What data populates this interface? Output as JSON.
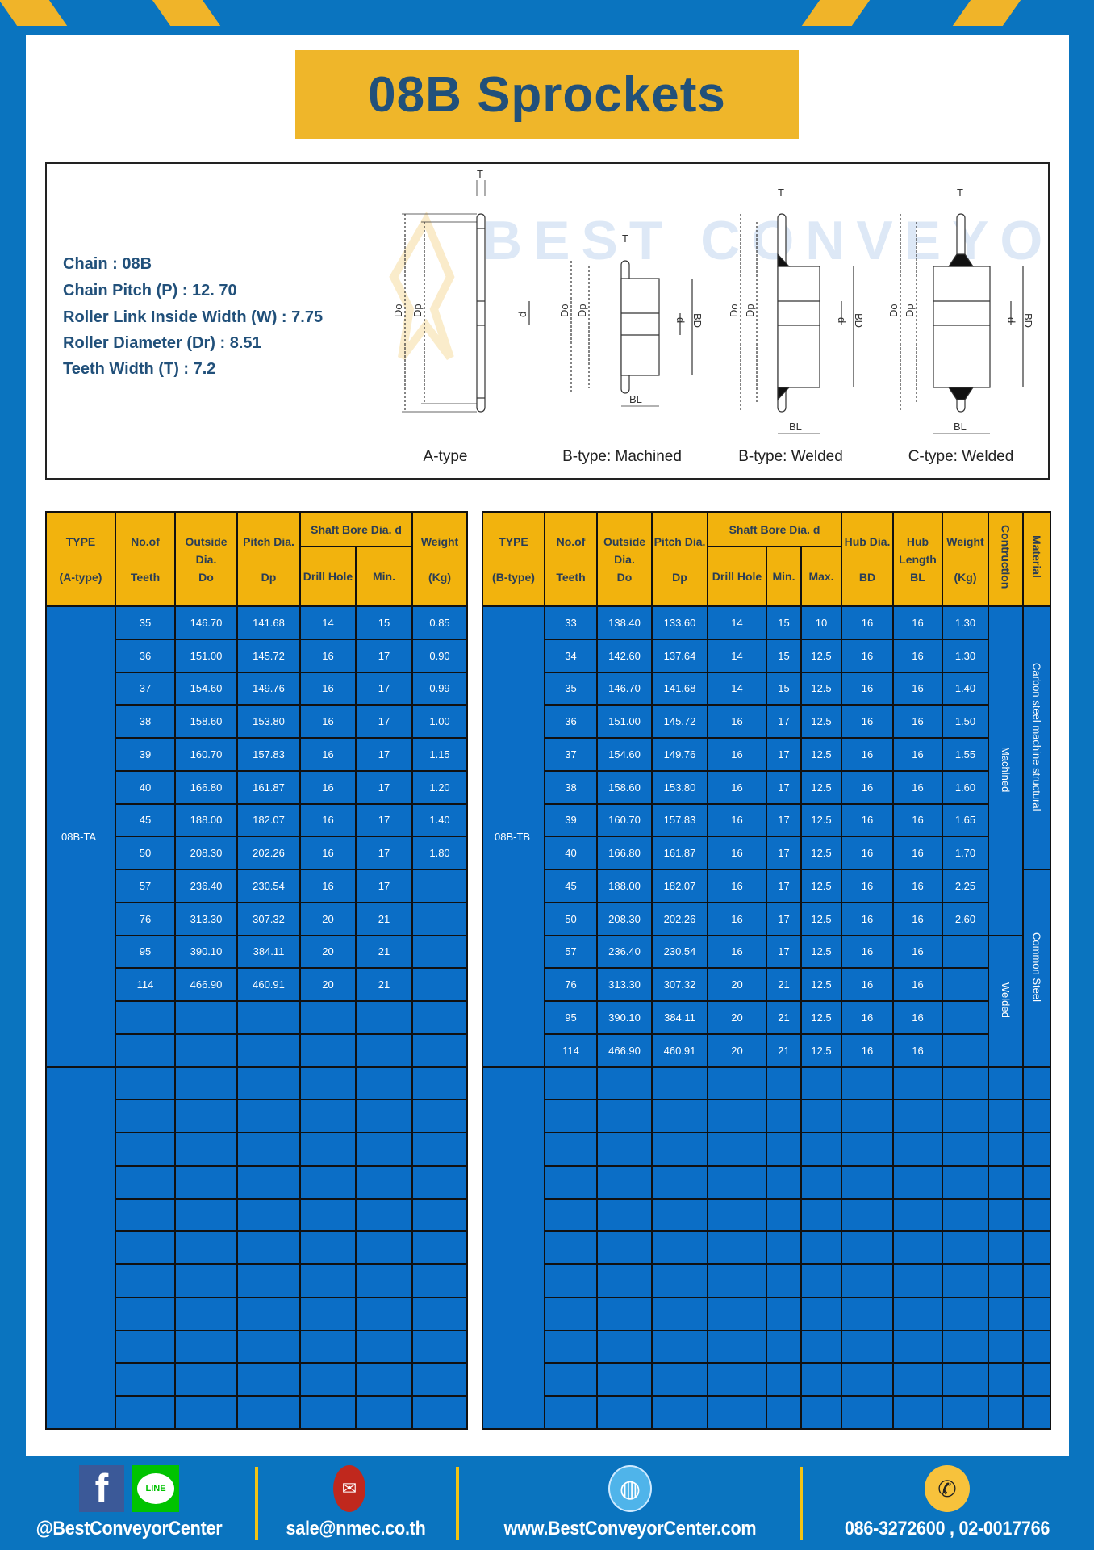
{
  "title": "08B Sprockets",
  "colors": {
    "brand_blue": "#0a74bf",
    "table_blue": "#0b6ec6",
    "header_yellow": "#f2b30d",
    "title_text": "#21507a"
  },
  "specs": [
    "Chain  : 08B",
    "Chain Pitch (P)  :  12. 70",
    "Roller Link Inside Width (W)  :  7.75",
    "Roller Diameter (Dr)  : 8.51",
    "Teeth Width (T)  :  7.2"
  ],
  "diagram": {
    "dim_labels": {
      "t": "T",
      "do": "Do",
      "dp": "Dp",
      "d": "d",
      "bd": "BD",
      "bl": "BL"
    },
    "types": [
      "A-type",
      "B-type: Machined",
      "B-type: Welded",
      "C-type: Welded"
    ],
    "watermark": "BEST CONVEYOR CENTER"
  },
  "tables": {
    "left": {
      "headers": {
        "type": [
          "TYPE",
          "(A-type)"
        ],
        "teeth": [
          "No.of",
          "Teeth"
        ],
        "outside": [
          "Outside",
          "Dia.",
          "Do"
        ],
        "pitch": [
          "Pitch Dia.",
          "Dp"
        ],
        "bore": "Shaft Bore Dia. d",
        "drill": "Drill Hole",
        "min": "Min.",
        "weight": [
          "Weight",
          "(Kg)"
        ]
      },
      "type_value": "08B-TA",
      "rows": [
        [
          "35",
          "146.70",
          "141.68",
          "14",
          "15",
          "0.85"
        ],
        [
          "36",
          "151.00",
          "145.72",
          "16",
          "17",
          "0.90"
        ],
        [
          "37",
          "154.60",
          "149.76",
          "16",
          "17",
          "0.99"
        ],
        [
          "38",
          "158.60",
          "153.80",
          "16",
          "17",
          "1.00"
        ],
        [
          "39",
          "160.70",
          "157.83",
          "16",
          "17",
          "1.15"
        ],
        [
          "40",
          "166.80",
          "161.87",
          "16",
          "17",
          "1.20"
        ],
        [
          "45",
          "188.00",
          "182.07",
          "16",
          "17",
          "1.40"
        ],
        [
          "50",
          "208.30",
          "202.26",
          "16",
          "17",
          "1.80"
        ],
        [
          "57",
          "236.40",
          "230.54",
          "16",
          "17",
          ""
        ],
        [
          "76",
          "313.30",
          "307.32",
          "20",
          "21",
          ""
        ],
        [
          "95",
          "390.10",
          "384.11",
          "20",
          "21",
          ""
        ],
        [
          "114",
          "466.90",
          "460.91",
          "20",
          "21",
          ""
        ],
        [
          "",
          "",
          "",
          "",
          "",
          ""
        ],
        [
          "",
          "",
          "",
          "",
          "",
          ""
        ]
      ]
    },
    "right": {
      "headers": {
        "type": [
          "TYPE",
          "(B-type)"
        ],
        "teeth": [
          "No.of",
          "Teeth"
        ],
        "outside": [
          "Outside",
          "Dia.",
          "Do"
        ],
        "pitch": [
          "Pitch Dia.",
          "Dp"
        ],
        "bore": "Shaft Bore Dia. d",
        "drill": "Drill Hole",
        "min": "Min.",
        "max": "Max.",
        "hub_dia": [
          "Hub Dia.",
          "BD"
        ],
        "hub_len": [
          "Hub",
          "Length",
          "BL"
        ],
        "weight": [
          "Weight",
          "(Kg)"
        ],
        "construction": "Contruction",
        "material": "Material"
      },
      "type_value": "08B-TB",
      "construction": [
        "Machined",
        "Welded"
      ],
      "material": [
        "Carbon steel   machine structural",
        "Common   Steel"
      ],
      "rows": [
        [
          "33",
          "138.40",
          "133.60",
          "14",
          "15",
          "10",
          "16",
          "16",
          "1.30"
        ],
        [
          "34",
          "142.60",
          "137.64",
          "14",
          "15",
          "12.5",
          "16",
          "16",
          "1.30"
        ],
        [
          "35",
          "146.70",
          "141.68",
          "14",
          "15",
          "12.5",
          "16",
          "16",
          "1.40"
        ],
        [
          "36",
          "151.00",
          "145.72",
          "16",
          "17",
          "12.5",
          "16",
          "16",
          "1.50"
        ],
        [
          "37",
          "154.60",
          "149.76",
          "16",
          "17",
          "12.5",
          "16",
          "16",
          "1.55"
        ],
        [
          "38",
          "158.60",
          "153.80",
          "16",
          "17",
          "12.5",
          "16",
          "16",
          "1.60"
        ],
        [
          "39",
          "160.70",
          "157.83",
          "16",
          "17",
          "12.5",
          "16",
          "16",
          "1.65"
        ],
        [
          "40",
          "166.80",
          "161.87",
          "16",
          "17",
          "12.5",
          "16",
          "16",
          "1.70"
        ],
        [
          "45",
          "188.00",
          "182.07",
          "16",
          "17",
          "12.5",
          "16",
          "16",
          "2.25"
        ],
        [
          "50",
          "208.30",
          "202.26",
          "16",
          "17",
          "12.5",
          "16",
          "16",
          "2.60"
        ],
        [
          "57",
          "236.40",
          "230.54",
          "16",
          "17",
          "12.5",
          "16",
          "16",
          ""
        ],
        [
          "76",
          "313.30",
          "307.32",
          "20",
          "21",
          "12.5",
          "16",
          "16",
          ""
        ],
        [
          "95",
          "390.10",
          "384.11",
          "20",
          "21",
          "12.5",
          "16",
          "16",
          ""
        ],
        [
          "114",
          "466.90",
          "460.91",
          "20",
          "21",
          "12.5",
          "16",
          "16",
          ""
        ]
      ]
    }
  },
  "footer": {
    "social": "@BestConveyorCenter",
    "line_label": "LINE",
    "email": "sale@nmec.co.th",
    "website": "www.BestConveyorCenter.com",
    "phone": "086-3272600 , 02-0017766"
  }
}
